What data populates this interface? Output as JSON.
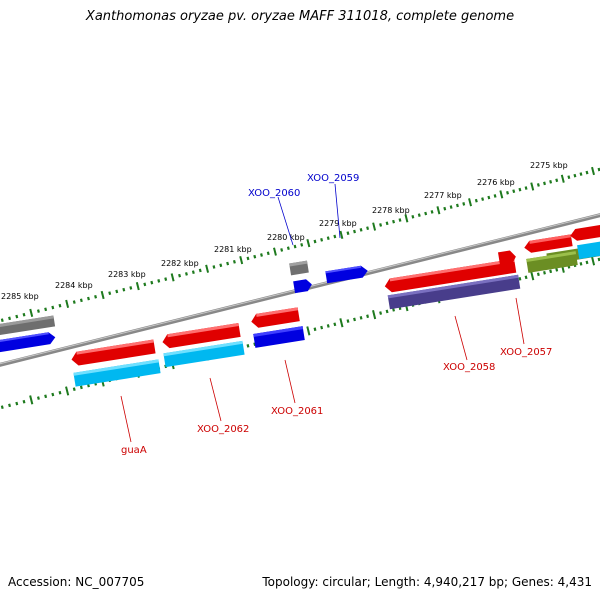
{
  "title": "Xanthomonas oryzae pv. oryzae MAFF 311018, complete genome",
  "footer": {
    "accession": "Accession: NC_007705",
    "topology": "Topology: circular; Length: 4,940,217 bp; Genes: 4,431"
  },
  "colors": {
    "ruler": "#1e7a1e",
    "backbone": "#808080",
    "label_forward": "#0000cc",
    "label_reverse": "#cc0000",
    "leader": "#cc0000"
  },
  "scale_labels": [
    "2275 kbp",
    "2276 kbp",
    "2277 kbp",
    "2278 kbp",
    "2279 kbp",
    "2280 kbp",
    "2281 kbp",
    "2282 kbp",
    "2283 kbp",
    "2284 kbp",
    "2285 kbp"
  ],
  "gene_labels": [
    {
      "id": "XOO_2059",
      "strand": "forward"
    },
    {
      "id": "XOO_2060",
      "strand": "forward"
    },
    {
      "id": "XOO_2057",
      "strand": "reverse"
    },
    {
      "id": "XOO_2058",
      "strand": "reverse"
    },
    {
      "id": "XOO_2061",
      "strand": "reverse"
    },
    {
      "id": "XOO_2062",
      "strand": "reverse"
    },
    {
      "id": "guaA",
      "strand": "reverse"
    }
  ]
}
